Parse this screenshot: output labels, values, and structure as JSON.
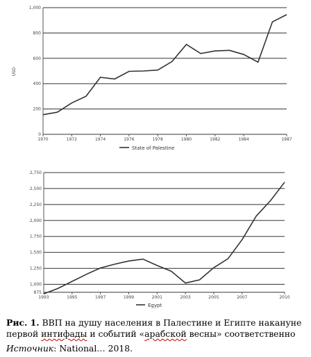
{
  "chart_data": [
    {
      "type": "line",
      "ylabel": "USD",
      "ylim": [
        0,
        1000
      ],
      "yticks": [
        0,
        200,
        400,
        600,
        800,
        1000
      ],
      "ytick_labels": [
        "0",
        "200",
        "400",
        "600",
        "800",
        "1,000"
      ],
      "xticks": [
        1970,
        1972,
        1974,
        1976,
        1978,
        1980,
        1982,
        1984,
        1987
      ],
      "grid": true,
      "legend_position": "bottom-left",
      "series": [
        {
          "name": "State of Palestine",
          "x": [
            1970,
            1971,
            1972,
            1973,
            1974,
            1975,
            1976,
            1977,
            1978,
            1979,
            1980,
            1981,
            1982,
            1983,
            1984,
            1985,
            1986,
            1987
          ],
          "values": [
            155,
            175,
            248,
            300,
            450,
            437,
            497,
            500,
            507,
            575,
            710,
            638,
            658,
            663,
            630,
            570,
            888,
            945
          ]
        }
      ]
    },
    {
      "type": "line",
      "ylim": [
        875,
        2750
      ],
      "yticks": [
        875,
        1000,
        1250,
        1500,
        1750,
        2000,
        2250,
        2500,
        2750
      ],
      "ytick_labels": [
        "875",
        "1,000",
        "1,250",
        "1,500",
        "1,750",
        "2,000",
        "2,250",
        "2,500",
        "2,750"
      ],
      "xticks": [
        1993,
        1995,
        1997,
        1999,
        2001,
        2003,
        2005,
        2007,
        2010
      ],
      "grid": true,
      "legend_position": "bottom-left",
      "series": [
        {
          "name": "Egypt",
          "x": [
            1993,
            1994,
            1995,
            1996,
            1997,
            1998,
            1999,
            2000,
            2001,
            2002,
            2003,
            2004,
            2005,
            2006,
            2007,
            2008,
            2009,
            2010
          ],
          "values": [
            850,
            935,
            1045,
            1155,
            1255,
            1315,
            1365,
            1395,
            1295,
            1205,
            1020,
            1070,
            1260,
            1400,
            1700,
            2070,
            2310,
            2600
          ]
        }
      ]
    }
  ],
  "caption": {
    "label": "Рис. 1.",
    "text_a": " ВВП на душу населения в Палестине и Египте накануне первой ",
    "word_underlined_1": "интифады",
    "text_b": " и событий «",
    "word_underlined_2": "арабской",
    "text_c": " весны» соответственно"
  },
  "source": {
    "label": "Источник",
    "text": ": National… 2018."
  }
}
